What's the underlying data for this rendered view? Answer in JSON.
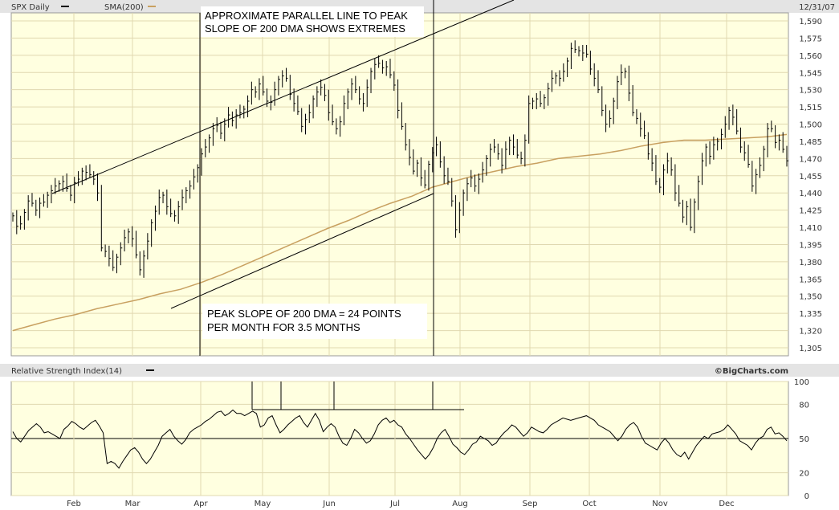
{
  "header": {
    "symbol_label": "SPX Daily",
    "sma_label": "SMA(200)",
    "date_label": "12/31/07"
  },
  "rsi_header": {
    "label": "Relative Strength Index(14)",
    "watermark": "©BigCharts.com"
  },
  "colors": {
    "plot_bg": "#ffffe0",
    "price_bars": "#000000",
    "sma_line": "#c8a060",
    "grid": "#e0d8b0",
    "header_bg": "#e4e4e4"
  },
  "annotations": {
    "top_line1": "APPROXIMATE PARALLEL LINE TO PEAK",
    "top_line2": "SLOPE OF 200 DMA SHOWS EXTREMES",
    "bottom_line1": "PEAK SLOPE OF 200 DMA = 24 POINTS",
    "bottom_line2": "PER MONTH FOR 3.5 MONTHS"
  },
  "chart_data": [
    {
      "type": "line",
      "title": "SPX Daily",
      "series_name": "SPX Daily",
      "months": [
        "Feb",
        "Mar",
        "Apr",
        "May",
        "Jun",
        "Jul",
        "Aug",
        "Sep",
        "Oct",
        "Nov",
        "Dec"
      ],
      "yticks": [
        1305,
        1320,
        1335,
        1350,
        1365,
        1380,
        1395,
        1410,
        1425,
        1440,
        1455,
        1470,
        1485,
        1500,
        1515,
        1530,
        1545,
        1560,
        1575,
        1590
      ],
      "ylim": [
        1298,
        1597
      ],
      "closes": [
        1420,
        1411,
        1413,
        1423,
        1433,
        1431,
        1425,
        1431,
        1432,
        1438,
        1442,
        1446,
        1448,
        1450,
        1444,
        1438,
        1449,
        1452,
        1459,
        1458,
        1456,
        1452,
        1440,
        1392,
        1389,
        1383,
        1375,
        1384,
        1392,
        1401,
        1406,
        1400,
        1386,
        1373,
        1385,
        1398,
        1414,
        1424,
        1436,
        1438,
        1428,
        1422,
        1420,
        1428,
        1436,
        1442,
        1446,
        1454,
        1462,
        1474,
        1480,
        1488,
        1496,
        1499,
        1492,
        1500,
        1508,
        1503,
        1508,
        1510,
        1513,
        1520,
        1530,
        1528,
        1535,
        1528,
        1520,
        1519,
        1530,
        1539,
        1542,
        1540,
        1526,
        1518,
        1511,
        1498,
        1504,
        1510,
        1522,
        1528,
        1532,
        1525,
        1510,
        1502,
        1496,
        1502,
        1518,
        1528,
        1535,
        1530,
        1522,
        1518,
        1532,
        1546,
        1552,
        1553,
        1549,
        1550,
        1543,
        1534,
        1512,
        1498,
        1482,
        1471,
        1459,
        1466,
        1453,
        1447,
        1465,
        1475,
        1482,
        1467,
        1455,
        1450,
        1433,
        1408,
        1425,
        1440,
        1448,
        1453,
        1446,
        1452,
        1460,
        1470,
        1478,
        1480,
        1474,
        1464,
        1478,
        1486,
        1480,
        1473,
        1470,
        1486,
        1518,
        1520,
        1522,
        1518,
        1523,
        1531,
        1540,
        1542,
        1540,
        1546,
        1555,
        1566,
        1565,
        1564,
        1562,
        1561,
        1548,
        1540,
        1530,
        1512,
        1500,
        1505,
        1520,
        1537,
        1545,
        1546,
        1527,
        1510,
        1505,
        1496,
        1490,
        1474,
        1466,
        1450,
        1445,
        1460,
        1468,
        1460,
        1440,
        1431,
        1419,
        1428,
        1410,
        1432,
        1450,
        1468,
        1480,
        1472,
        1482,
        1485,
        1491,
        1500,
        1512,
        1506,
        1494,
        1480,
        1475,
        1465,
        1446,
        1456,
        1464,
        1478,
        1496,
        1496,
        1484,
        1486,
        1478,
        1468
      ],
      "sma200": [
        1320,
        1325,
        1330,
        1334,
        1339,
        1343,
        1347,
        1352,
        1356,
        1362,
        1369,
        1377,
        1385,
        1393,
        1401,
        1409,
        1416,
        1424,
        1431,
        1437,
        1445,
        1450,
        1455,
        1459,
        1463,
        1466,
        1470,
        1472,
        1474,
        1477,
        1481,
        1484,
        1486,
        1486,
        1487,
        1488,
        1489,
        1491
      ],
      "sma200_days": [
        0,
        10,
        20,
        30,
        40,
        50,
        60,
        70,
        80,
        90,
        100,
        110,
        120,
        130,
        140,
        150,
        160,
        170,
        180,
        190,
        200,
        210,
        220,
        230,
        240,
        250,
        260,
        270,
        280,
        290,
        300,
        310,
        320,
        330,
        340,
        350,
        360,
        369
      ]
    },
    {
      "type": "line",
      "title": "Relative Strength Index(14)",
      "series_name": "Relative Strength Index(14)",
      "yticks": [
        0,
        20,
        50,
        80,
        100
      ],
      "ylim": [
        0,
        100
      ],
      "reference_line": 50,
      "values": [
        56,
        50,
        47,
        52,
        57,
        60,
        63,
        60,
        55,
        56,
        54,
        52,
        50,
        58,
        61,
        65,
        63,
        60,
        58,
        61,
        64,
        66,
        61,
        55,
        28,
        30,
        28,
        24,
        30,
        35,
        40,
        42,
        38,
        32,
        28,
        32,
        38,
        44,
        52,
        55,
        58,
        52,
        48,
        45,
        49,
        55,
        58,
        60,
        62,
        65,
        67,
        70,
        73,
        74,
        70,
        72,
        75,
        72,
        72,
        70,
        72,
        74,
        72,
        60,
        62,
        68,
        70,
        62,
        55,
        58,
        62,
        65,
        68,
        70,
        64,
        60,
        66,
        72,
        66,
        56,
        60,
        63,
        60,
        52,
        46,
        44,
        50,
        58,
        55,
        50,
        46,
        48,
        54,
        62,
        66,
        68,
        64,
        66,
        62,
        60,
        54,
        50,
        45,
        40,
        36,
        32,
        36,
        42,
        50,
        55,
        58,
        52,
        45,
        42,
        38,
        36,
        40,
        45,
        47,
        52,
        50,
        48,
        44,
        46,
        51,
        55,
        58,
        62,
        60,
        56,
        52,
        55,
        60,
        58,
        56,
        55,
        58,
        62,
        64,
        66,
        68,
        67,
        66,
        67,
        68,
        69,
        70,
        68,
        66,
        62,
        60,
        58,
        56,
        52,
        48,
        52,
        58,
        62,
        64,
        60,
        52,
        46,
        44,
        42,
        40,
        46,
        50,
        46,
        40,
        36,
        34,
        38,
        32,
        38,
        44,
        48,
        52,
        50,
        54,
        55,
        56,
        58,
        62,
        58,
        54,
        48,
        46,
        44,
        40,
        46,
        50,
        52,
        58,
        60,
        54,
        55,
        52,
        48
      ]
    }
  ]
}
